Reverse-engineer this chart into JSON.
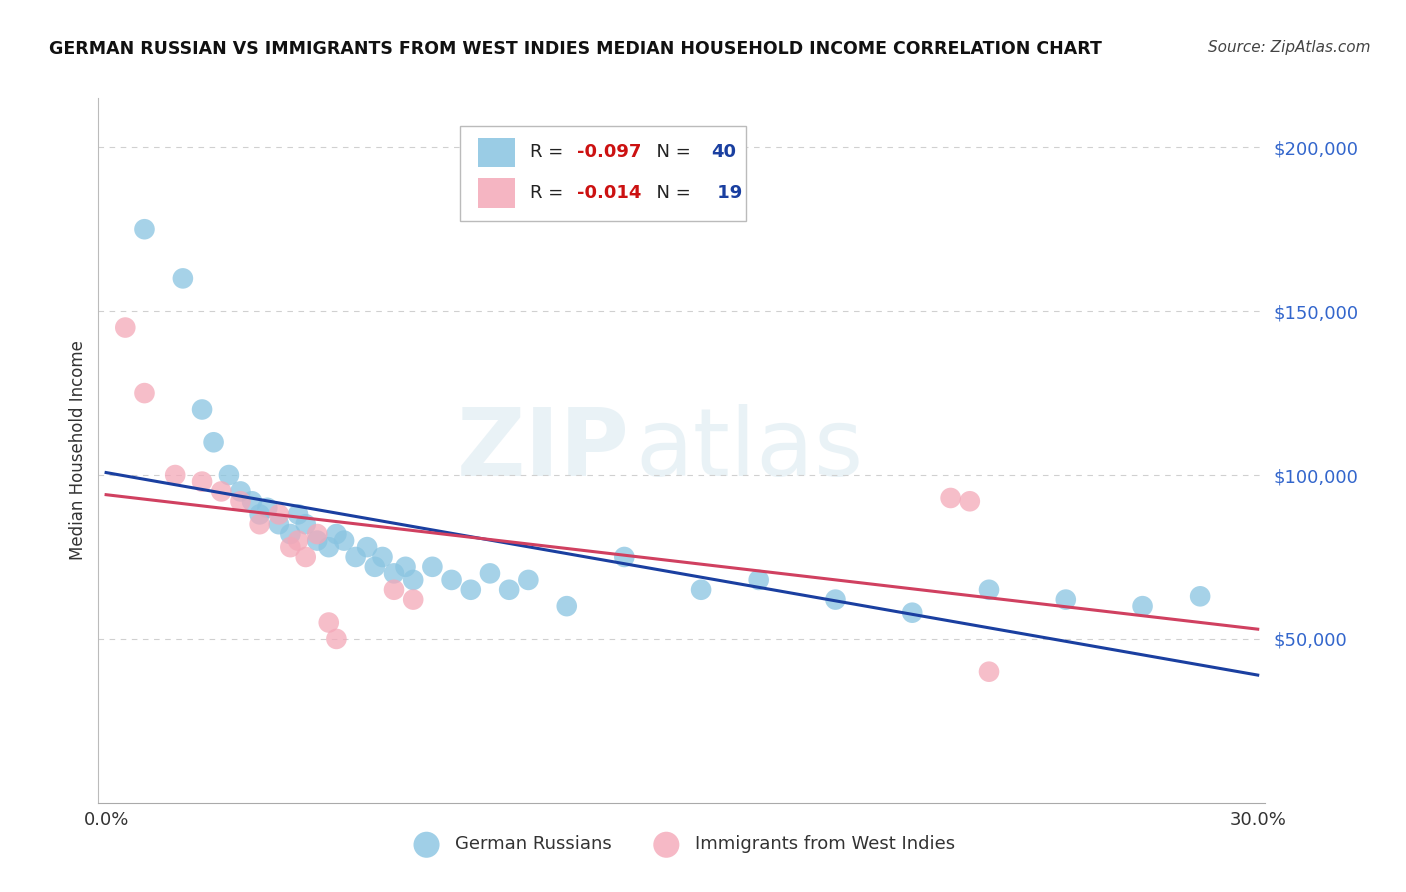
{
  "title": "GERMAN RUSSIAN VS IMMIGRANTS FROM WEST INDIES MEDIAN HOUSEHOLD INCOME CORRELATION CHART",
  "source": "Source: ZipAtlas.com",
  "ylabel": "Median Household Income",
  "legend_label_blue": "German Russians",
  "legend_label_pink": "Immigrants from West Indies",
  "blue_color": "#89c4e1",
  "pink_color": "#f4a8b8",
  "blue_line_color": "#1a3fa0",
  "pink_line_color": "#d04060",
  "blue_x": [
    0.01,
    0.02,
    0.025,
    0.028,
    0.032,
    0.035,
    0.038,
    0.04,
    0.042,
    0.045,
    0.048,
    0.05,
    0.052,
    0.055,
    0.058,
    0.06,
    0.062,
    0.065,
    0.068,
    0.07,
    0.072,
    0.075,
    0.078,
    0.08,
    0.085,
    0.09,
    0.095,
    0.1,
    0.105,
    0.11,
    0.12,
    0.135,
    0.155,
    0.17,
    0.19,
    0.21,
    0.23,
    0.25,
    0.27,
    0.285
  ],
  "blue_y": [
    175000,
    160000,
    120000,
    110000,
    100000,
    95000,
    92000,
    88000,
    90000,
    85000,
    82000,
    88000,
    85000,
    80000,
    78000,
    82000,
    80000,
    75000,
    78000,
    72000,
    75000,
    70000,
    72000,
    68000,
    72000,
    68000,
    65000,
    70000,
    65000,
    68000,
    60000,
    75000,
    65000,
    68000,
    62000,
    58000,
    65000,
    62000,
    60000,
    63000
  ],
  "pink_x": [
    0.005,
    0.01,
    0.018,
    0.025,
    0.03,
    0.035,
    0.04,
    0.045,
    0.048,
    0.05,
    0.052,
    0.055,
    0.058,
    0.06,
    0.075,
    0.08,
    0.22,
    0.225,
    0.23
  ],
  "pink_y": [
    145000,
    125000,
    100000,
    98000,
    95000,
    92000,
    85000,
    88000,
    78000,
    80000,
    75000,
    82000,
    55000,
    50000,
    65000,
    62000,
    93000,
    92000,
    40000
  ],
  "ylim": [
    0,
    215000
  ],
  "xlim": [
    -0.002,
    0.302
  ],
  "yticks": [
    50000,
    100000,
    150000,
    200000
  ],
  "ytick_labels": [
    "$50,000",
    "$100,000",
    "$150,000",
    "$200,000"
  ],
  "xticks": [
    0.0,
    0.05,
    0.1,
    0.15,
    0.2,
    0.25,
    0.3
  ],
  "xtick_labels": [
    "0.0%",
    "",
    "",
    "",
    "",
    "",
    "30.0%"
  ],
  "background_color": "#ffffff",
  "grid_color": "#d0d0d0",
  "r_blue": "-0.097",
  "n_blue": "40",
  "r_pink": "-0.014",
  "n_pink": "19"
}
